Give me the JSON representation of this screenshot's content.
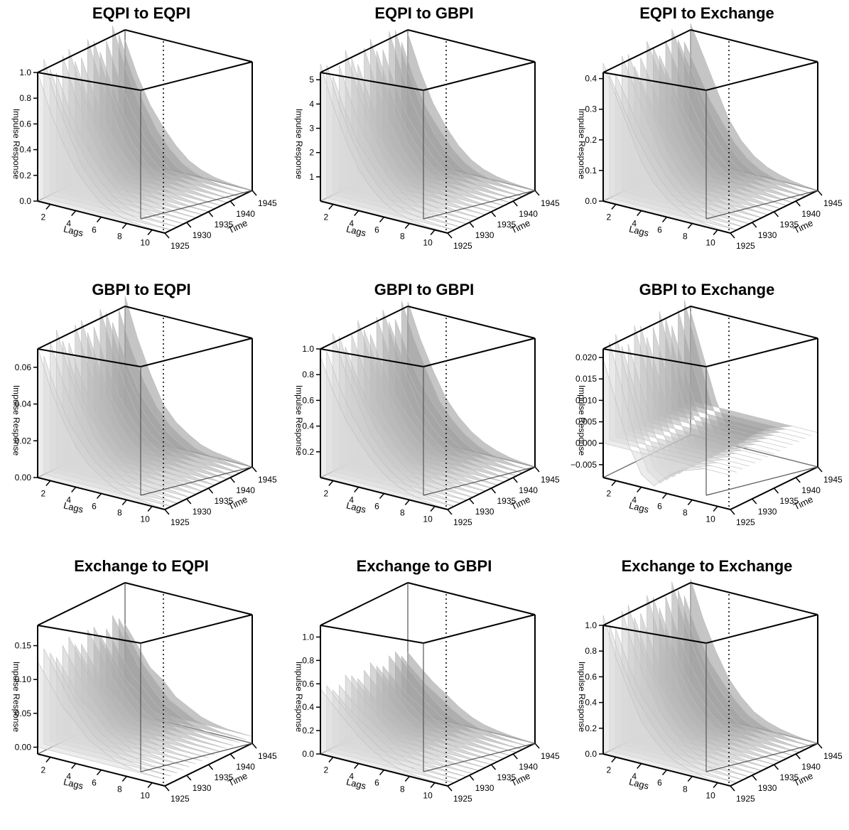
{
  "colors": {
    "background": "#ffffff",
    "surface_dark": "#a9a9a9",
    "surface_light": "#dcdcdc",
    "frame": "#000000"
  },
  "chart_data": [
    {
      "type": "surface",
      "title": "EQPI to EQPI",
      "xlabel": "Lags",
      "ylabel": "Time",
      "zlabel": "Impulse Response",
      "x_ticks": [
        "2",
        "4",
        "6",
        "8",
        "10"
      ],
      "y_ticks": [
        "1925",
        "1930",
        "1935",
        "1940",
        "1945"
      ],
      "z_ticks": [
        "0.0",
        "0.2",
        "0.4",
        "0.6",
        "0.8",
        "1.0"
      ],
      "zlim": [
        0,
        1.0
      ],
      "profile": [
        1.0,
        0.72,
        0.5,
        0.32,
        0.2,
        0.11,
        0.06,
        0.03,
        0.015,
        0.006,
        0.002
      ]
    },
    {
      "type": "surface",
      "title": "EQPI to GBPI",
      "xlabel": "Lags",
      "ylabel": "Time",
      "zlabel": "Impulse Response",
      "x_ticks": [
        "2",
        "4",
        "6",
        "8",
        "10"
      ],
      "y_ticks": [
        "1925",
        "1930",
        "1935",
        "1940",
        "1945"
      ],
      "z_ticks": [
        "1",
        "2",
        "3",
        "4",
        "5"
      ],
      "zlim": [
        0,
        5.3
      ],
      "profile": [
        5.3,
        3.8,
        2.6,
        1.7,
        1.05,
        0.6,
        0.33,
        0.18,
        0.09,
        0.04,
        0.01
      ]
    },
    {
      "type": "surface",
      "title": "EQPI to Exchange",
      "xlabel": "Lags",
      "ylabel": "Time",
      "zlabel": "Impulse Response",
      "x_ticks": [
        "2",
        "4",
        "6",
        "8",
        "10"
      ],
      "y_ticks": [
        "1925",
        "1930",
        "1935",
        "1940",
        "1945"
      ],
      "z_ticks": [
        "0.0",
        "0.1",
        "0.2",
        "0.3",
        "0.4"
      ],
      "zlim": [
        0,
        0.42
      ],
      "profile": [
        0.42,
        0.33,
        0.24,
        0.16,
        0.1,
        0.06,
        0.035,
        0.02,
        0.01,
        0.004,
        0.001
      ]
    },
    {
      "type": "surface",
      "title": "GBPI to EQPI",
      "xlabel": "Lags",
      "ylabel": "Time",
      "zlabel": "Impulse Response",
      "x_ticks": [
        "2",
        "4",
        "6",
        "8",
        "10"
      ],
      "y_ticks": [
        "1925",
        "1930",
        "1935",
        "1940",
        "1945"
      ],
      "z_ticks": [
        "0.00",
        "0.02",
        "0.04",
        "0.06"
      ],
      "zlim": [
        0,
        0.07
      ],
      "profile": [
        0.07,
        0.05,
        0.034,
        0.022,
        0.014,
        0.009,
        0.005,
        0.003,
        0.002,
        0.001,
        0.0
      ]
    },
    {
      "type": "surface",
      "title": "GBPI to GBPI",
      "xlabel": "Lags",
      "ylabel": "Time",
      "zlabel": "Impulse Response",
      "x_ticks": [
        "2",
        "4",
        "6",
        "8",
        "10"
      ],
      "y_ticks": [
        "1925",
        "1930",
        "1935",
        "1940",
        "1945"
      ],
      "z_ticks": [
        "0.2",
        "0.4",
        "0.6",
        "0.8",
        "1.0"
      ],
      "zlim": [
        0,
        1.0
      ],
      "profile": [
        1.0,
        0.74,
        0.53,
        0.36,
        0.24,
        0.15,
        0.09,
        0.05,
        0.025,
        0.01,
        0.003
      ]
    },
    {
      "type": "surface",
      "title": "GBPI to Exchange",
      "xlabel": "Lags",
      "ylabel": "Time",
      "zlabel": "Impulse Response",
      "x_ticks": [
        "2",
        "4",
        "6",
        "8",
        "10"
      ],
      "y_ticks": [
        "1925",
        "1930",
        "1935",
        "1940",
        "1945"
      ],
      "z_ticks": [
        "−0.005",
        "0.000",
        "0.005",
        "0.010",
        "0.015",
        "0.020"
      ],
      "zlim": [
        -0.008,
        0.022
      ],
      "profile": [
        0.022,
        0.012,
        0.002,
        -0.005,
        -0.007,
        -0.004,
        -0.002,
        -0.001,
        0.0,
        0.0,
        0.0
      ]
    },
    {
      "type": "surface",
      "title": "Exchange to EQPI",
      "xlabel": "Lags",
      "ylabel": "Time",
      "zlabel": "Impulse Response",
      "x_ticks": [
        "2",
        "4",
        "6",
        "8",
        "10"
      ],
      "y_ticks": [
        "1925",
        "1930",
        "1935",
        "1940",
        "1945"
      ],
      "z_ticks": [
        "0.00",
        "0.05",
        "0.10",
        "0.15"
      ],
      "zlim": [
        -0.01,
        0.18
      ],
      "profile": [
        0.13,
        0.1,
        0.07,
        0.05,
        0.03,
        0.02,
        0.01,
        0.005,
        0.002,
        0.001,
        0.0
      ]
    },
    {
      "type": "surface",
      "title": "Exchange to GBPI",
      "xlabel": "Lags",
      "ylabel": "Time",
      "zlabel": "Impulse Response",
      "x_ticks": [
        "2",
        "4",
        "6",
        "8",
        "10"
      ],
      "y_ticks": [
        "1925",
        "1930",
        "1935",
        "1940",
        "1945"
      ],
      "z_ticks": [
        "0.0",
        "0.2",
        "0.4",
        "0.6",
        "0.8",
        "1.0"
      ],
      "zlim": [
        0,
        1.1
      ],
      "profile": [
        0.53,
        0.42,
        0.32,
        0.23,
        0.15,
        0.09,
        0.05,
        0.03,
        0.015,
        0.006,
        0.002
      ]
    },
    {
      "type": "surface",
      "title": "Exchange to Exchange",
      "xlabel": "Lags",
      "ylabel": "Time",
      "zlabel": "Impulse Response",
      "x_ticks": [
        "2",
        "4",
        "6",
        "8",
        "10"
      ],
      "y_ticks": [
        "1925",
        "1930",
        "1935",
        "1940",
        "1945"
      ],
      "z_ticks": [
        "0.0",
        "0.2",
        "0.4",
        "0.6",
        "0.8",
        "1.0"
      ],
      "zlim": [
        0,
        1.0
      ],
      "profile": [
        1.0,
        0.72,
        0.5,
        0.33,
        0.21,
        0.12,
        0.07,
        0.04,
        0.02,
        0.008,
        0.002
      ]
    }
  ]
}
